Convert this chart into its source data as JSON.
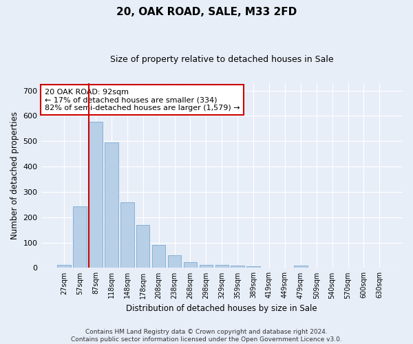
{
  "title": "20, OAK ROAD, SALE, M33 2FD",
  "subtitle": "Size of property relative to detached houses in Sale",
  "xlabel": "Distribution of detached houses by size in Sale",
  "ylabel": "Number of detached properties",
  "bar_color": "#b8cfe8",
  "bar_edge_color": "#7aaad0",
  "highlight_bar_index": 2,
  "highlight_line_color": "#cc0000",
  "bin_labels": [
    "27sqm",
    "57sqm",
    "87sqm",
    "118sqm",
    "148sqm",
    "178sqm",
    "208sqm",
    "238sqm",
    "268sqm",
    "298sqm",
    "329sqm",
    "359sqm",
    "389sqm",
    "419sqm",
    "449sqm",
    "479sqm",
    "509sqm",
    "540sqm",
    "570sqm",
    "600sqm",
    "630sqm"
  ],
  "bar_values": [
    13,
    243,
    578,
    495,
    258,
    170,
    92,
    49,
    24,
    13,
    12,
    10,
    7,
    0,
    0,
    8,
    0,
    0,
    0,
    0,
    0
  ],
  "ylim": [
    0,
    730
  ],
  "yticks": [
    0,
    100,
    200,
    300,
    400,
    500,
    600,
    700
  ],
  "annotation_text": "20 OAK ROAD: 92sqm\n← 17% of detached houses are smaller (334)\n82% of semi-detached houses are larger (1,579) →",
  "annotation_box_facecolor": "#ffffff",
  "annotation_box_edgecolor": "#cc0000",
  "footer_text": "Contains HM Land Registry data © Crown copyright and database right 2024.\nContains public sector information licensed under the Open Government Licence v3.0.",
  "bg_color": "#e8eef8",
  "plot_bg_color": "#e8eef8",
  "grid_color": "#ffffff",
  "figsize": [
    6.0,
    5.0
  ],
  "dpi": 100
}
